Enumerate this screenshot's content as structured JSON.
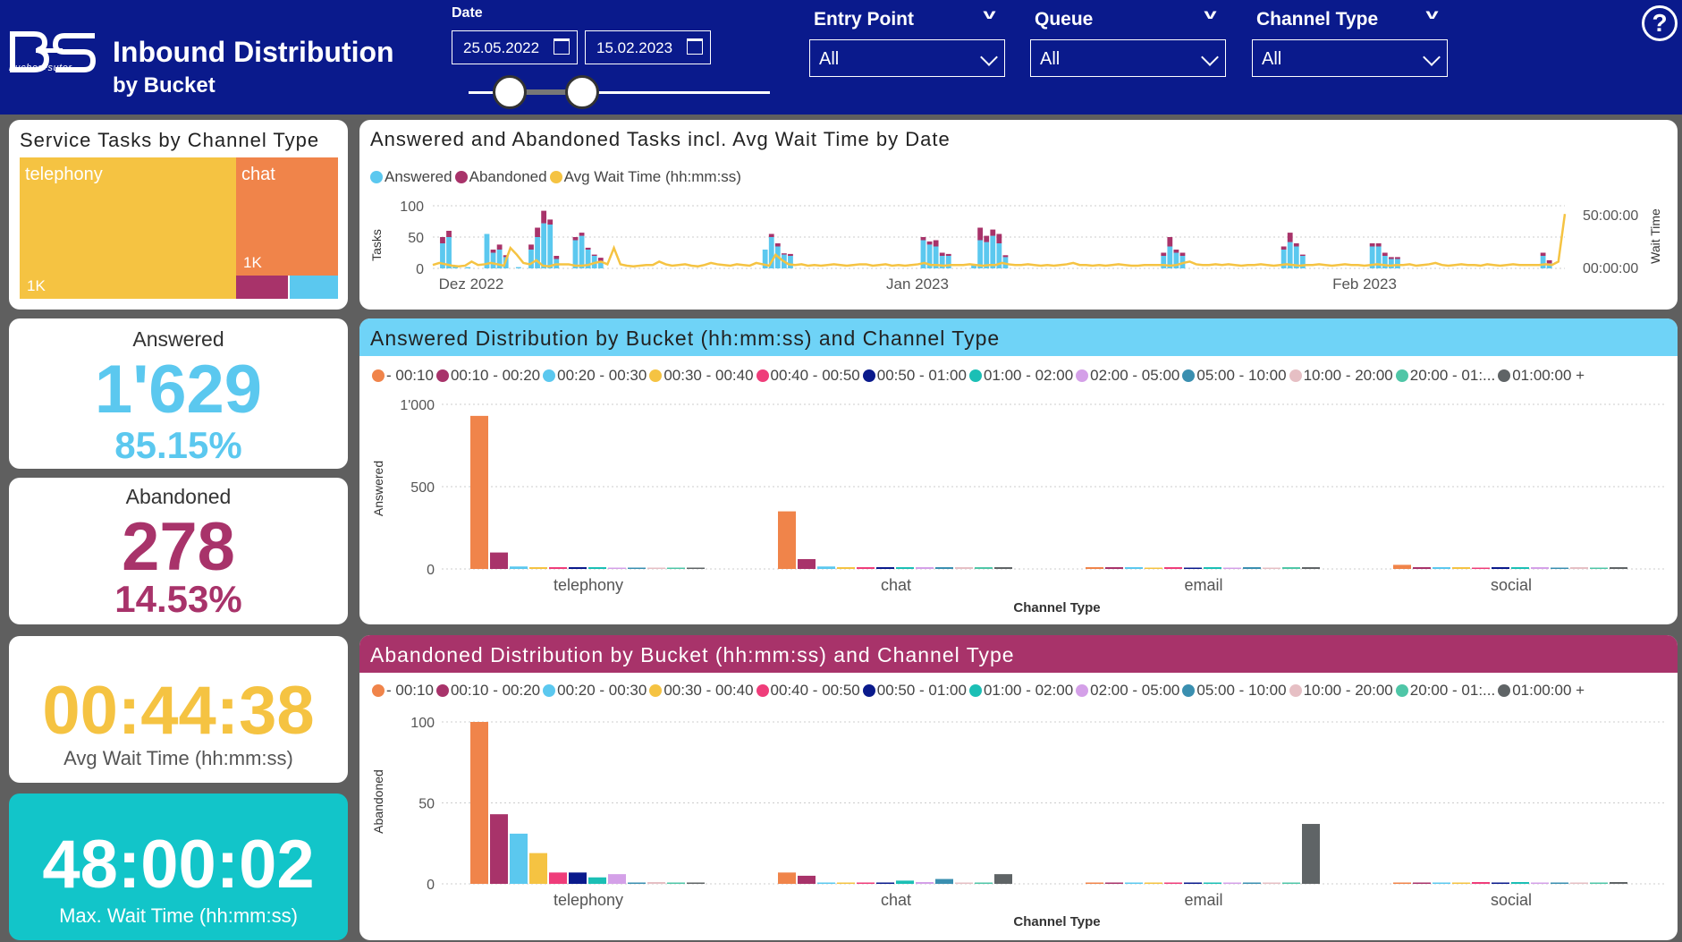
{
  "header": {
    "logo_text": "bucher+suter",
    "title_line1": "Inbound Distribution",
    "title_line2": "by Bucket"
  },
  "date": {
    "label": "Date",
    "start": "25.05.2022",
    "end": "15.02.2023"
  },
  "filters": [
    {
      "label": "Entry Point",
      "value": "All"
    },
    {
      "label": "Queue",
      "value": "All"
    },
    {
      "label": "Channel Type",
      "value": "All"
    }
  ],
  "help_icon": "?",
  "treemap": {
    "title": "Service Tasks by Channel Type",
    "cells": [
      {
        "label": "telephony",
        "value_label": "1K",
        "color": "#f5c342"
      },
      {
        "label": "chat",
        "value_label": "1K",
        "color": "#f0844a"
      },
      {
        "label": "",
        "value_label": "",
        "color": "#a8336a"
      },
      {
        "label": "",
        "value_label": "",
        "color": "#5bc8ef"
      }
    ]
  },
  "kpi_answered": {
    "label": "Answered",
    "value": "1'629",
    "pct": "85.15%"
  },
  "kpi_abandoned": {
    "label": "Abandoned",
    "value": "278",
    "pct": "14.53%"
  },
  "kpi_avg": {
    "value": "00:44:38",
    "label": "Avg Wait Time (hh:mm:ss)"
  },
  "kpi_max": {
    "value": "48:00:02",
    "label": "Max. Wait Time (hh:mm:ss)"
  },
  "combo": {
    "title": "Answered and Abandoned Tasks incl. Avg Wait Time by Date",
    "legend": [
      {
        "name": "Answered",
        "color": "#5bc8ef"
      },
      {
        "name": "Abandoned",
        "color": "#a8336a"
      },
      {
        "name": "Avg Wait Time (hh:mm:ss)",
        "color": "#f5c342"
      }
    ],
    "y_title": "Tasks",
    "y2_title": "Wait Time"
  },
  "answered_chart": {
    "title": "Answered Distribution by Bucket (hh:mm:ss) and Channel Type",
    "banner_color": "#6fd3f7"
  },
  "abandoned_chart": {
    "title": "Abandoned Distribution by Bucket (hh:mm:ss) and Channel Type",
    "banner_color": "#a8336a"
  },
  "buckets": [
    {
      "name": "- 00:10",
      "color": "#f0844a"
    },
    {
      "name": "00:10 - 00:20",
      "color": "#a8336a"
    },
    {
      "name": "00:20 - 00:30",
      "color": "#5bc8ef"
    },
    {
      "name": "00:30 - 00:40",
      "color": "#f5c342"
    },
    {
      "name": "00:40 - 00:50",
      "color": "#ef3d7a"
    },
    {
      "name": "00:50 - 01:00",
      "color": "#0a1a8c"
    },
    {
      "name": "01:00 - 02:00",
      "color": "#1bbfb5"
    },
    {
      "name": "02:00 - 05:00",
      "color": "#d4a0e8"
    },
    {
      "name": "05:00 - 10:00",
      "color": "#3a8fb0"
    },
    {
      "name": "10:00 - 20:00",
      "color": "#e6bfc4"
    },
    {
      "name": "20:00 - 01:...",
      "color": "#4fc6a7"
    },
    {
      "name": "01:00:00 +",
      "color": "#5f6466"
    }
  ],
  "chart_data": [
    {
      "type": "bar",
      "title": "Answered and Abandoned Tasks incl. Avg Wait Time by Date",
      "xlabel": "",
      "ylabel": "Tasks",
      "y2label": "Wait Time",
      "ylim": [
        0,
        100
      ],
      "yticks": [
        "0",
        "50",
        "100"
      ],
      "y2ticks": [
        "00:00:00",
        "50:00:00"
      ],
      "x_ticks": [
        "Dez 2022",
        "Jan 2023",
        "Feb 2023"
      ],
      "answered": [
        0,
        40,
        50,
        5,
        0,
        2,
        0,
        0,
        55,
        25,
        30,
        18,
        0,
        2,
        0,
        30,
        50,
        72,
        70,
        15,
        0,
        0,
        45,
        52,
        30,
        20,
        12,
        0,
        0,
        0,
        0,
        0,
        0,
        0,
        0,
        0,
        0,
        0,
        0,
        0,
        0,
        0,
        0,
        0,
        0,
        0,
        0,
        0,
        0,
        0,
        0,
        0,
        30,
        50,
        35,
        22,
        20,
        0,
        0,
        0,
        0,
        0,
        0,
        0,
        0,
        0,
        0,
        0,
        0,
        0,
        0,
        0,
        0,
        0,
        0,
        0,
        0,
        45,
        38,
        35,
        20,
        20,
        0,
        0,
        0,
        5,
        45,
        42,
        52,
        40,
        18,
        0,
        0,
        0,
        0,
        0,
        0,
        0,
        0,
        0,
        0,
        0,
        0,
        0,
        0,
        0,
        0,
        0,
        0,
        0,
        0,
        0,
        0,
        0,
        0,
        20,
        35,
        25,
        20,
        0,
        0,
        0,
        0,
        0,
        0,
        0,
        0,
        0,
        0,
        0,
        0,
        0,
        0,
        0,
        30,
        42,
        35,
        20,
        0,
        0,
        0,
        0,
        0,
        0,
        0,
        0,
        0,
        0,
        35,
        35,
        20,
        15,
        15,
        0,
        0,
        0,
        0,
        0,
        0,
        0,
        0,
        0,
        0,
        0,
        0,
        0,
        0,
        0,
        0,
        0,
        0,
        0,
        0,
        0,
        0,
        20,
        8,
        0,
        0
      ],
      "abandoned": [
        0,
        10,
        10,
        0,
        0,
        0,
        0,
        0,
        0,
        5,
        8,
        3,
        0,
        0,
        0,
        8,
        15,
        20,
        8,
        5,
        0,
        0,
        5,
        5,
        3,
        2,
        5,
        0,
        0,
        0,
        0,
        0,
        0,
        0,
        0,
        0,
        0,
        0,
        0,
        0,
        0,
        0,
        0,
        0,
        0,
        0,
        0,
        0,
        0,
        0,
        0,
        0,
        0,
        5,
        5,
        2,
        3,
        0,
        0,
        0,
        0,
        0,
        0,
        0,
        0,
        0,
        0,
        0,
        0,
        0,
        0,
        0,
        0,
        0,
        0,
        0,
        0,
        5,
        5,
        10,
        5,
        3,
        0,
        0,
        0,
        2,
        20,
        10,
        10,
        15,
        3,
        0,
        0,
        0,
        0,
        0,
        0,
        0,
        0,
        0,
        0,
        0,
        0,
        0,
        0,
        0,
        0,
        0,
        0,
        0,
        0,
        0,
        0,
        0,
        0,
        5,
        15,
        5,
        5,
        0,
        0,
        0,
        0,
        0,
        0,
        0,
        0,
        0,
        0,
        0,
        0,
        0,
        0,
        0,
        5,
        15,
        5,
        2,
        0,
        0,
        0,
        0,
        0,
        0,
        0,
        0,
        0,
        0,
        5,
        5,
        5,
        3,
        3,
        0,
        0,
        0,
        0,
        0,
        0,
        0,
        0,
        0,
        0,
        0,
        0,
        0,
        0,
        0,
        0,
        0,
        0,
        0,
        0,
        0,
        0,
        5,
        5,
        0,
        0
      ],
      "avg_wait_pct": [
        5,
        8,
        6,
        4,
        3,
        4,
        10,
        5,
        6,
        8,
        6,
        4,
        30,
        20,
        8,
        6,
        12,
        4,
        3,
        6,
        6,
        6,
        4,
        4,
        5,
        8,
        10,
        6,
        30,
        6,
        4,
        3,
        4,
        5,
        5,
        10,
        6,
        4,
        5,
        6,
        4,
        3,
        5,
        8,
        6,
        5,
        4,
        6,
        5,
        4,
        8,
        6,
        4,
        20,
        12,
        6,
        5,
        6,
        4,
        5,
        4,
        5,
        6,
        5,
        4,
        5,
        6,
        6,
        4,
        5,
        6,
        4,
        5,
        4,
        5,
        6,
        8,
        5,
        5,
        4,
        5,
        5,
        5,
        6,
        5,
        4,
        5,
        5,
        8,
        6,
        5,
        5,
        6,
        5,
        4,
        5,
        4,
        5,
        6,
        8,
        5,
        5,
        4,
        5,
        4,
        5,
        6,
        5,
        4,
        4,
        5,
        5,
        5,
        5,
        4,
        5,
        8,
        10,
        6,
        5,
        5,
        6,
        5,
        6,
        5,
        4,
        5,
        5,
        6,
        5,
        4,
        5,
        6,
        5,
        4,
        5,
        5,
        6,
        5,
        4,
        5,
        6,
        5,
        5,
        4,
        5,
        6,
        5,
        4,
        5,
        5,
        6,
        4,
        5,
        6,
        8,
        5,
        4,
        5,
        6,
        5,
        5,
        4,
        6,
        5,
        4,
        5,
        6,
        5,
        5,
        5,
        5,
        6,
        5,
        10,
        80
      ]
    },
    {
      "type": "bar",
      "title": "Answered Distribution by Bucket (hh:mm:ss) and Channel Type",
      "xlabel": "Channel Type",
      "ylabel": "Answered",
      "ylim": [
        0,
        1000
      ],
      "yticks": [
        "0",
        "500",
        "1'000"
      ],
      "categories": [
        "telephony",
        "chat",
        "email",
        "social"
      ],
      "series": [
        {
          "name": "- 00:10",
          "values": [
            930,
            350,
            5,
            25
          ]
        },
        {
          "name": "00:10 - 00:20",
          "values": [
            100,
            60,
            5,
            10
          ]
        },
        {
          "name": "00:20 - 00:30",
          "values": [
            15,
            15,
            5,
            5
          ]
        },
        {
          "name": "00:30 - 00:40",
          "values": [
            5,
            5,
            0,
            5
          ]
        },
        {
          "name": "00:40 - 00:50",
          "values": [
            5,
            5,
            5,
            0
          ]
        },
        {
          "name": "00:50 - 01:00",
          "values": [
            5,
            5,
            0,
            5
          ]
        },
        {
          "name": "01:00 - 02:00",
          "values": [
            5,
            5,
            5,
            5
          ]
        },
        {
          "name": "02:00 - 05:00",
          "values": [
            0,
            5,
            0,
            5
          ]
        },
        {
          "name": "05:00 - 10:00",
          "values": [
            0,
            5,
            5,
            0
          ]
        },
        {
          "name": "10:00 - 20:00",
          "values": [
            0,
            5,
            0,
            5
          ]
        },
        {
          "name": "20:00 - 01:...",
          "values": [
            0,
            5,
            5,
            0
          ]
        },
        {
          "name": "01:00:00 +",
          "values": [
            0,
            5,
            5,
            5
          ]
        }
      ]
    },
    {
      "type": "bar",
      "title": "Abandoned Distribution by Bucket (hh:mm:ss) and Channel Type",
      "xlabel": "Channel Type",
      "ylabel": "Abandoned",
      "ylim": [
        0,
        100
      ],
      "yticks": [
        "0",
        "50",
        "100"
      ],
      "categories": [
        "telephony",
        "chat",
        "email",
        "social"
      ],
      "series": [
        {
          "name": "- 00:10",
          "values": [
            100,
            7,
            0,
            0
          ]
        },
        {
          "name": "00:10 - 00:20",
          "values": [
            43,
            5,
            0,
            0
          ]
        },
        {
          "name": "00:20 - 00:30",
          "values": [
            31,
            0,
            0,
            0
          ]
        },
        {
          "name": "00:30 - 00:40",
          "values": [
            19,
            0,
            0,
            0
          ]
        },
        {
          "name": "00:40 - 00:50",
          "values": [
            7,
            0,
            0,
            1
          ]
        },
        {
          "name": "00:50 - 01:00",
          "values": [
            7,
            0,
            0,
            0
          ]
        },
        {
          "name": "01:00 - 02:00",
          "values": [
            4,
            2,
            0,
            1
          ]
        },
        {
          "name": "02:00 - 05:00",
          "values": [
            6,
            1,
            0,
            0
          ]
        },
        {
          "name": "05:00 - 10:00",
          "values": [
            0,
            3,
            0,
            0
          ]
        },
        {
          "name": "10:00 - 20:00",
          "values": [
            1,
            0,
            0,
            0
          ]
        },
        {
          "name": "20:00 - 01:...",
          "values": [
            0,
            0,
            0,
            0
          ]
        },
        {
          "name": "01:00:00 +",
          "values": [
            0,
            6,
            37,
            1
          ]
        }
      ]
    }
  ]
}
